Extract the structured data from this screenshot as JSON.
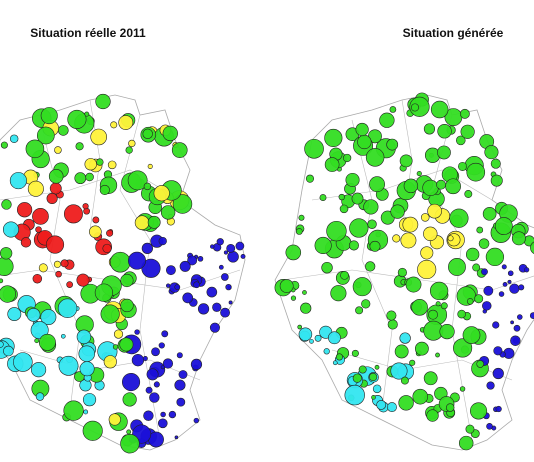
{
  "maps": [
    {
      "title": "Situation réelle 2011"
    },
    {
      "title": "Situation générée"
    }
  ]
}
